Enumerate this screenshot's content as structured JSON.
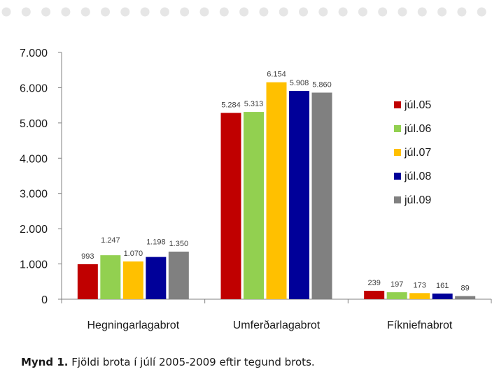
{
  "chart_data": {
    "type": "bar",
    "categories": [
      "Hegningarlagabrot",
      "Umferðarlagabrot",
      "Fíkniefnabrot"
    ],
    "series": [
      {
        "name": "júl.05",
        "color": "#c00000",
        "values": [
          993,
          5284,
          239
        ]
      },
      {
        "name": "júl.06",
        "color": "#92d050",
        "values": [
          1247,
          5313,
          197
        ]
      },
      {
        "name": "júl.07",
        "color": "#ffc000",
        "values": [
          1070,
          6154,
          173
        ]
      },
      {
        "name": "júl.08",
        "color": "#000099",
        "values": [
          1198,
          5908,
          161
        ]
      },
      {
        "name": "júl.09",
        "color": "#808080",
        "values": [
          1350,
          5860,
          89
        ]
      }
    ],
    "data_labels": [
      [
        "993",
        "5.284",
        "239"
      ],
      [
        "1.247",
        "5.313",
        "197"
      ],
      [
        "1.070",
        "6.154",
        "173"
      ],
      [
        "1.198",
        "5.908",
        "161"
      ],
      [
        "1.350",
        "5.860",
        "89"
      ]
    ],
    "yticks": [
      "0",
      "1.000",
      "2.000",
      "3.000",
      "4.000",
      "5.000",
      "6.000",
      "7.000"
    ],
    "ylim": [
      0,
      7000
    ],
    "legend_position": "right",
    "grid": false
  },
  "caption": {
    "label": "Mynd 1.",
    "text": "Fjöldi brota í júlí 2005-2009 eftir tegund brots."
  }
}
